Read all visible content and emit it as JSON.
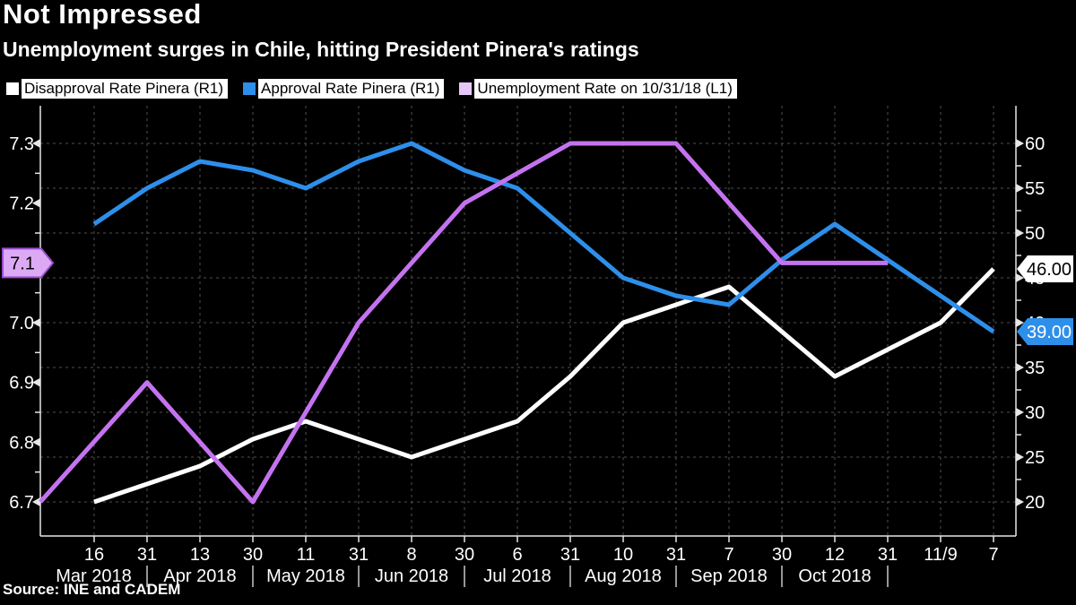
{
  "header": {
    "title": "Not Impressed",
    "subtitle": "Unemployment surges in Chile, hitting President Pinera's ratings"
  },
  "source": "Source: INE and CADEM",
  "legend": {
    "items": [
      {
        "label": "Disapproval Rate Pinera (R1)",
        "color": "#ffffff"
      },
      {
        "label": "Approval Rate Pinera (R1)",
        "color": "#2e8fea"
      },
      {
        "label": "Unemployment Rate on 10/31/18 (L1)",
        "color": "#e6c8f8"
      }
    ]
  },
  "chart_data": {
    "type": "line",
    "title": "Not Impressed",
    "subtitle": "Unemployment surges in Chile, hitting President Pinera's ratings",
    "x_tick_labels": [
      "16",
      "31",
      "13",
      "30",
      "11",
      "31",
      "8",
      "30",
      "6",
      "31",
      "10",
      "31",
      "7",
      "30",
      "12",
      "31",
      "11/9",
      "7"
    ],
    "month_labels": [
      "Mar 2018",
      "Apr 2018",
      "May 2018",
      "Jun 2018",
      "Jul 2018",
      "Aug 2018",
      "Sep 2018",
      "Oct 2018"
    ],
    "month_boundary_tick_indices": [
      1,
      3,
      5,
      7,
      9,
      11,
      13,
      15
    ],
    "left_axis": {
      "ticks": [
        7.3,
        7.2,
        7.1,
        7.0,
        6.9,
        6.8,
        6.7
      ],
      "min": 6.7,
      "max": 7.3,
      "badge_value": 7.1
    },
    "right_axis": {
      "ticks": [
        60,
        55,
        50,
        45,
        40,
        35,
        30,
        25,
        20
      ],
      "min": 20,
      "max": 60
    },
    "grid": true,
    "legend_position": "top",
    "series": [
      {
        "id": "disapproval",
        "name": "Disapproval Rate Pinera (R1)",
        "axis": "right",
        "color": "#ffffff",
        "values": [
          20,
          22,
          24,
          27,
          29,
          27,
          25,
          27,
          29,
          34,
          40,
          42,
          44,
          39,
          34,
          37,
          40,
          46
        ]
      },
      {
        "id": "approval",
        "name": "Approval Rate Pinera (R1)",
        "axis": "right",
        "color": "#2e8fea",
        "values": [
          51,
          55,
          58,
          57,
          55,
          58,
          60,
          57,
          55,
          50,
          45,
          43,
          42,
          47,
          51,
          47,
          43,
          39
        ]
      },
      {
        "id": "unemployment",
        "name": "Unemployment Rate on 10/31/18 (L1)",
        "axis": "left",
        "color": "#c473f0",
        "points": [
          [
            -1.02,
            6.7
          ],
          [
            1,
            6.9
          ],
          [
            3,
            6.7
          ],
          [
            5,
            7.0
          ],
          [
            7,
            7.2
          ],
          [
            9,
            7.3
          ],
          [
            11,
            7.3
          ],
          [
            13,
            7.1
          ],
          [
            15,
            7.1
          ]
        ]
      }
    ],
    "badges": {
      "left": {
        "text": "7.1",
        "value": 7.1,
        "fill": "#dcaaf5",
        "border": "#9b4fd2",
        "text_color": "#000000"
      },
      "right": [
        {
          "text": "46.00",
          "value": 46,
          "fill": "#ffffff",
          "text_color": "#000000"
        },
        {
          "text": "39.00",
          "value": 39,
          "fill": "#2e8fea",
          "text_color": "#ffffff"
        }
      ]
    }
  }
}
